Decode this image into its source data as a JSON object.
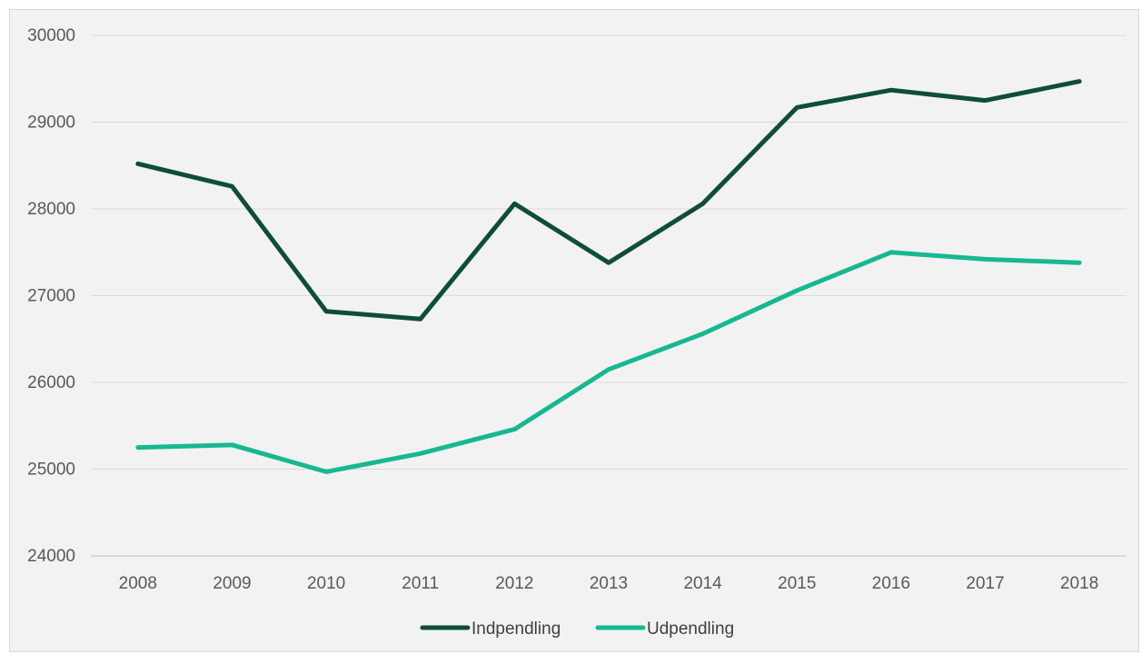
{
  "chart_data": {
    "type": "line",
    "title": "",
    "xlabel": "",
    "ylabel": "",
    "categories": [
      "2008",
      "2009",
      "2010",
      "2011",
      "2012",
      "2013",
      "2014",
      "2015",
      "2016",
      "2017",
      "2018"
    ],
    "series": [
      {
        "name": "Indpendling",
        "color": "#0f4d36",
        "values": [
          28520,
          28260,
          26820,
          26730,
          28060,
          27380,
          28060,
          29170,
          29370,
          29250,
          29470
        ]
      },
      {
        "name": "Udpendling",
        "color": "#17b890",
        "values": [
          25250,
          25280,
          24970,
          25180,
          25460,
          26150,
          26560,
          27060,
          27500,
          27420,
          27380
        ]
      }
    ],
    "ylim": [
      24000,
      30000
    ],
    "yticks": [
      24000,
      25000,
      26000,
      27000,
      28000,
      29000,
      30000
    ],
    "grid": true,
    "legend_position": "bottom"
  }
}
